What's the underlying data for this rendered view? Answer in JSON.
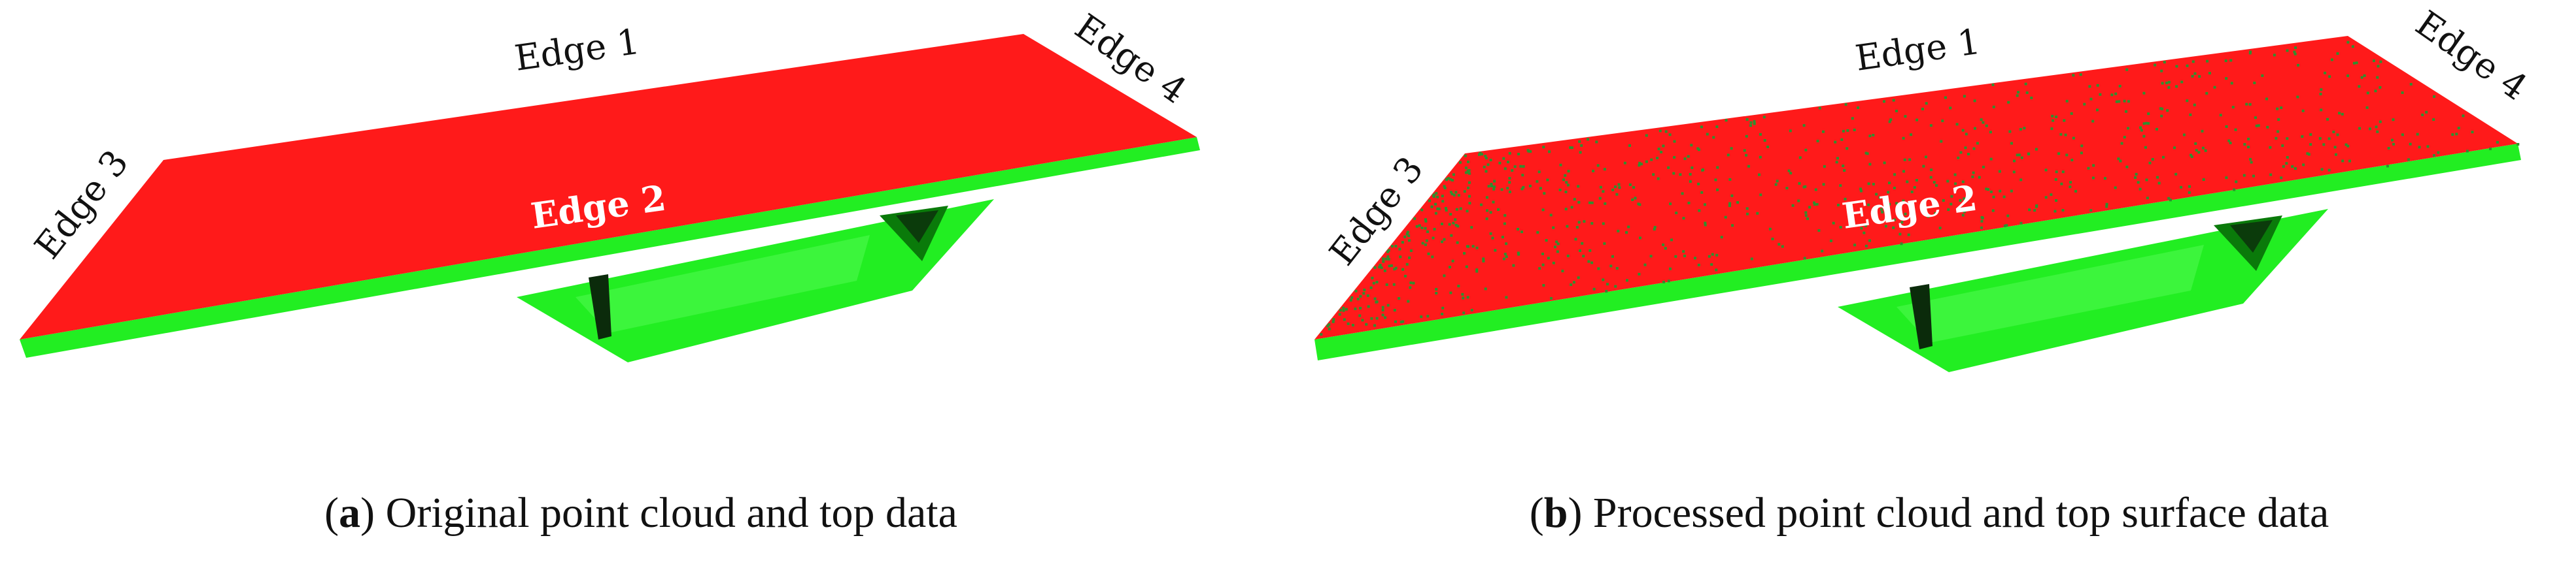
{
  "colors": {
    "top_surface": "#ff1a1a",
    "side_surface": "#22ee22",
    "shadow": "#0a7a0a",
    "noise": "#2f8f2f"
  },
  "figure_a": {
    "edge_labels": {
      "edge1": "Edge 1",
      "edge2": "Edge 2",
      "edge3": "Edge 3",
      "edge4": "Edge 4"
    },
    "caption": {
      "open": "(",
      "letter": "a",
      "close": ")",
      "text": " Original point cloud and top data"
    }
  },
  "figure_b": {
    "edge_labels": {
      "edge1": "Edge 1",
      "edge2": "Edge 2",
      "edge3": "Edge 3",
      "edge4": "Edge 4"
    },
    "caption": {
      "open": "(",
      "letter": "b",
      "close": ")",
      "text": " Processed point cloud and top surface data"
    }
  }
}
